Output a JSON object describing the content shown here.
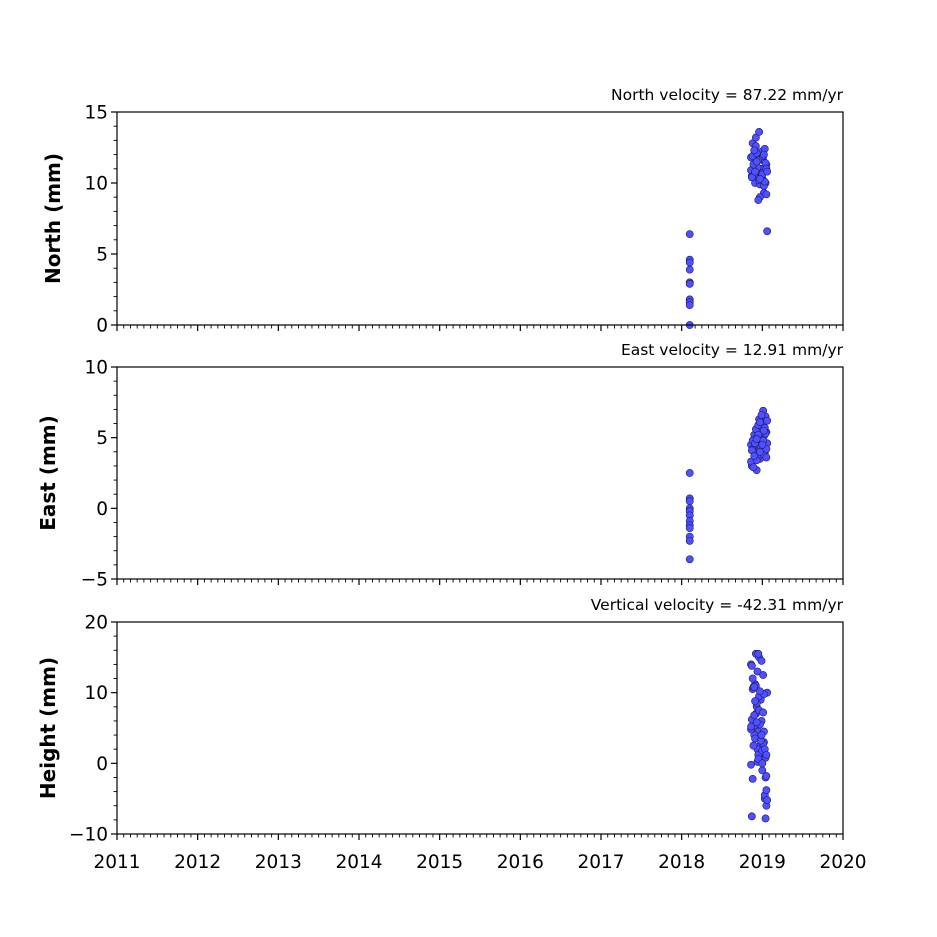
{
  "chart_data": [
    {
      "type": "scatter",
      "name": "north",
      "title": "North velocity = 87.22 mm/yr",
      "ylabel": "North (mm)",
      "xlim": [
        2011,
        2020
      ],
      "ylim": [
        0,
        15
      ],
      "yticks": [
        0,
        5,
        10,
        15
      ],
      "ytick_labels": [
        "0",
        "5",
        "10",
        "15"
      ],
      "yminor_step": 1,
      "color": "#5050ff",
      "x": [
        2018.1,
        2018.1,
        2018.1,
        2018.1,
        2018.1,
        2018.1,
        2018.1,
        2018.1,
        2018.1,
        2018.1,
        2018.86,
        2018.87,
        2018.88,
        2018.9,
        2018.91,
        2018.92,
        2018.93,
        2018.94,
        2018.95,
        2018.96,
        2018.97,
        2018.98,
        2018.99,
        2019.0,
        2019.01,
        2019.02,
        2019.03,
        2019.04,
        2019.05,
        2019.06,
        2018.86,
        2018.88,
        2018.9,
        2018.92,
        2018.94,
        2018.96,
        2018.98,
        2019.0,
        2019.02,
        2019.04,
        2018.87,
        2018.89,
        2018.91,
        2018.93,
        2018.95,
        2018.97,
        2018.99,
        2019.01,
        2019.03,
        2019.05,
        2018.9,
        2018.95,
        2019.0,
        2019.05,
        2018.93,
        2018.97,
        2019.02,
        2019.06
      ],
      "y": [
        6.4,
        4.6,
        4.4,
        3.9,
        3.0,
        2.9,
        1.8,
        1.6,
        1.4,
        0.0,
        11.8,
        10.5,
        12.8,
        11.2,
        10.0,
        13.2,
        11.5,
        12.0,
        10.8,
        13.6,
        9.9,
        11.0,
        12.2,
        10.3,
        11.6,
        9.3,
        12.4,
        10.0,
        11.3,
        6.6,
        10.9,
        11.9,
        10.6,
        12.6,
        11.1,
        10.2,
        11.7,
        10.7,
        9.8,
        11.4,
        10.4,
        11.3,
        10.8,
        12.1,
        11.6,
        9.0,
        10.5,
        11.9,
        10.1,
        11.0,
        12.3,
        8.8,
        10.6,
        9.2,
        11.5,
        10.3,
        12.0,
        10.8
      ]
    },
    {
      "type": "scatter",
      "name": "east",
      "title": "East velocity = 12.91 mm/yr",
      "ylabel": "East (mm)",
      "xlim": [
        2011,
        2020
      ],
      "ylim": [
        -5,
        10
      ],
      "yticks": [
        -5,
        0,
        5,
        10
      ],
      "ytick_labels": [
        "−5",
        "0",
        "5",
        "10"
      ],
      "yminor_step": 1,
      "color": "#5050ff",
      "x": [
        2018.1,
        2018.1,
        2018.1,
        2018.1,
        2018.1,
        2018.1,
        2018.1,
        2018.1,
        2018.1,
        2018.1,
        2018.1,
        2018.1,
        2018.86,
        2018.87,
        2018.88,
        2018.9,
        2018.91,
        2018.92,
        2018.93,
        2018.94,
        2018.95,
        2018.96,
        2018.97,
        2018.98,
        2018.99,
        2019.0,
        2019.01,
        2019.02,
        2019.03,
        2019.04,
        2019.05,
        2019.06,
        2018.86,
        2018.88,
        2018.9,
        2018.92,
        2018.94,
        2018.96,
        2018.98,
        2019.0,
        2019.02,
        2019.04,
        2018.87,
        2018.89,
        2018.91,
        2018.93,
        2018.95,
        2018.97,
        2018.99,
        2019.01,
        2019.03,
        2019.05,
        2018.9,
        2018.95,
        2019.0,
        2019.05,
        2018.93,
        2018.97,
        2019.02,
        2019.06
      ],
      "y": [
        2.5,
        0.7,
        0.5,
        0.0,
        -0.2,
        -0.5,
        -0.9,
        -1.2,
        -1.4,
        -2.0,
        -2.3,
        -3.6,
        4.5,
        3.0,
        4.2,
        5.2,
        3.8,
        4.9,
        2.7,
        5.5,
        4.1,
        6.3,
        3.5,
        4.7,
        5.8,
        4.3,
        6.9,
        5.1,
        3.9,
        6.5,
        5.4,
        4.6,
        3.3,
        4.8,
        4.0,
        5.6,
        3.6,
        5.0,
        4.4,
        6.0,
        3.8,
        5.3,
        4.1,
        2.9,
        4.6,
        3.4,
        5.2,
        4.0,
        6.6,
        4.8,
        5.7,
        4.2,
        3.7,
        5.9,
        4.5,
        3.6,
        4.9,
        6.1,
        5.5,
        6.2
      ]
    },
    {
      "type": "scatter",
      "name": "height",
      "title": "Vertical velocity = -42.31 mm/yr",
      "ylabel": "Height (mm)",
      "xlim": [
        2011,
        2020
      ],
      "ylim": [
        -10,
        20
      ],
      "yticks": [
        -10,
        0,
        10,
        20
      ],
      "ytick_labels": [
        "−10",
        "0",
        "10",
        "20"
      ],
      "yminor_step": 2,
      "color": "#5050ff",
      "x": [
        2018.86,
        2018.87,
        2018.88,
        2018.9,
        2018.91,
        2018.92,
        2018.93,
        2018.94,
        2018.95,
        2018.96,
        2018.97,
        2018.98,
        2018.99,
        2019.0,
        2019.01,
        2019.02,
        2019.03,
        2019.04,
        2019.05,
        2019.06,
        2018.86,
        2018.88,
        2018.9,
        2018.92,
        2018.94,
        2018.96,
        2018.98,
        2019.0,
        2019.02,
        2019.04,
        2018.87,
        2018.89,
        2018.91,
        2018.93,
        2018.95,
        2018.97,
        2018.99,
        2019.01,
        2019.03,
        2019.05,
        2018.86,
        2018.88,
        2018.9,
        2018.92,
        2018.94,
        2018.96,
        2018.98,
        2019.0,
        2019.02,
        2019.04,
        2018.87,
        2018.89,
        2018.91,
        2018.93,
        2018.95,
        2018.97,
        2018.99,
        2019.01,
        2019.03,
        2019.05,
        2018.86,
        2018.9,
        2018.95,
        2019.0,
        2019.05,
        2019.06
      ],
      "y": [
        14.0,
        -7.5,
        10.5,
        5.0,
        11.2,
        15.5,
        8.0,
        13.0,
        4.5,
        15.0,
        2.5,
        9.0,
        6.0,
        0.5,
        12.5,
        3.0,
        -5.0,
        -2.0,
        -6.0,
        10.0,
        -0.2,
        -2.2,
        4.0,
        7.0,
        2.0,
        9.5,
        1.5,
        -1.0,
        4.5,
        0.8,
        6.2,
        10.8,
        3.5,
        8.5,
        1.2,
        5.5,
        14.5,
        2.8,
        -4.5,
        -3.8,
        4.8,
        12.0,
        6.8,
        11.0,
        0.2,
        7.5,
        3.2,
        1.8,
        9.8,
        -7.8,
        13.8,
        2.5,
        8.8,
        5.8,
        0.6,
        10.2,
        4.0,
        7.2,
        2.0,
        -1.8,
        5.2,
        10.8,
        15.5,
        0.0,
        1.2,
        -5.2
      ]
    }
  ],
  "xaxis": {
    "ticks": [
      2011,
      2012,
      2013,
      2014,
      2015,
      2016,
      2017,
      2018,
      2019,
      2020
    ],
    "tick_labels": [
      "2011",
      "2012",
      "2013",
      "2014",
      "2015",
      "2016",
      "2017",
      "2018",
      "2019",
      "2020"
    ],
    "minor_per_major": 12
  }
}
